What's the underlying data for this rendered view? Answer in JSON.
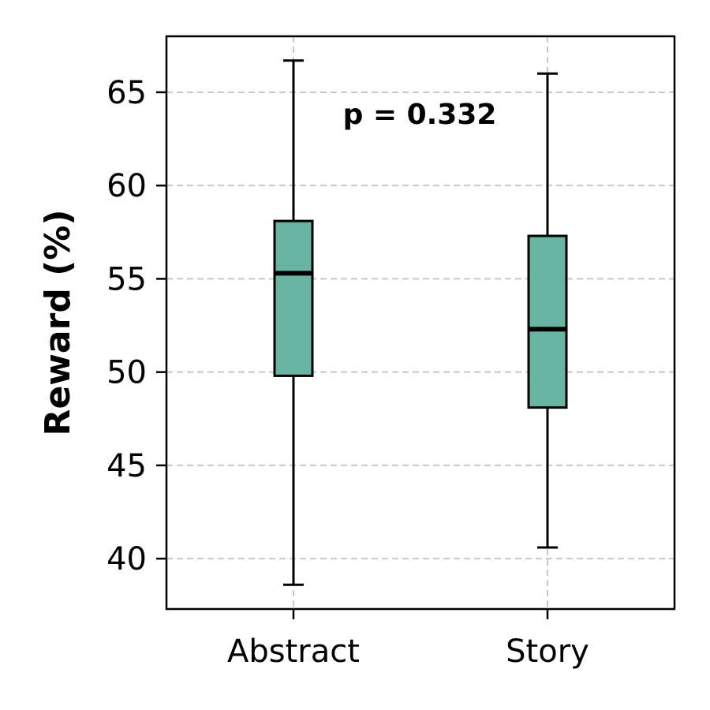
{
  "chart_data": {
    "type": "box",
    "categories": [
      "Abstract",
      "Story"
    ],
    "boxes": [
      {
        "name": "Abstract",
        "whisker_low": 38.6,
        "q1": 49.8,
        "median": 55.3,
        "q3": 58.1,
        "whisker_high": 66.7
      },
      {
        "name": "Story",
        "whisker_low": 40.6,
        "q1": 48.1,
        "median": 52.3,
        "q3": 57.3,
        "whisker_high": 66.0
      }
    ],
    "ylabel": "Reward (%)",
    "yticks": [
      40,
      45,
      50,
      55,
      60,
      65
    ],
    "ylim": [
      37.3,
      68.0
    ],
    "grid": true,
    "annotation": "p = 0.332",
    "colors": {
      "box_fill": "#69b3a2",
      "edge": "#000000",
      "grid": "#c8c8c8"
    }
  }
}
